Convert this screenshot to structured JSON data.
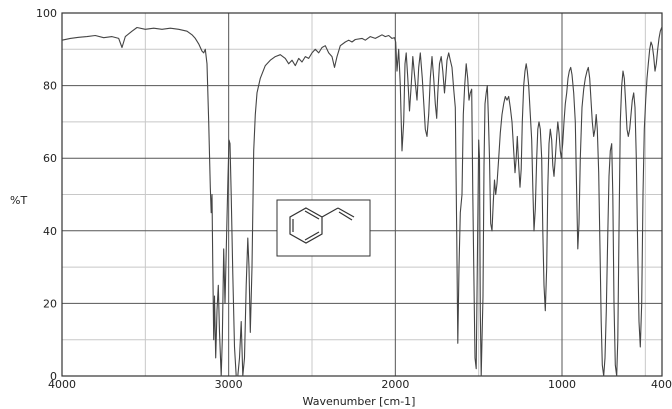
{
  "chart_data": {
    "type": "line",
    "xlabel": "Wavenumber [cm-1]",
    "ylabel": "%T",
    "xlim": [
      4000,
      400
    ],
    "ylim": [
      0,
      100
    ],
    "x_reversed": true,
    "grid": true,
    "x_ticks": [
      4000,
      3000,
      2000,
      1000,
      400
    ],
    "x_tick_labels": [
      "4000",
      "3000",
      "2000",
      "1000",
      "400"
    ],
    "x_minor_grid": [
      3500,
      2500,
      1500,
      500
    ],
    "y_ticks": [
      0,
      20,
      40,
      60,
      80,
      100
    ],
    "y_tick_labels": [
      "0",
      "20",
      "40",
      "60",
      "80",
      "100"
    ],
    "y_minor_grid": [
      10,
      30,
      50,
      70,
      90
    ],
    "inset": "styrene-structure",
    "colors": {
      "line": "#444444",
      "grid": "#555555",
      "minor_grid": "#c8c8c8",
      "frame": "#333333"
    },
    "series": [
      {
        "points": [
          [
            4000,
            92.5
          ],
          [
            3950,
            93
          ],
          [
            3900,
            93.3
          ],
          [
            3850,
            93.5
          ],
          [
            3800,
            93.8
          ],
          [
            3750,
            93.2
          ],
          [
            3700,
            93.5
          ],
          [
            3660,
            93
          ],
          [
            3640,
            90.5
          ],
          [
            3620,
            93.5
          ],
          [
            3580,
            95
          ],
          [
            3550,
            96
          ],
          [
            3500,
            95.5
          ],
          [
            3450,
            95.8
          ],
          [
            3400,
            95.5
          ],
          [
            3350,
            95.8
          ],
          [
            3300,
            95.5
          ],
          [
            3250,
            95
          ],
          [
            3220,
            94
          ],
          [
            3200,
            93
          ],
          [
            3180,
            91.5
          ],
          [
            3160,
            89.5
          ],
          [
            3150,
            89
          ],
          [
            3140,
            90
          ],
          [
            3130,
            86
          ],
          [
            3120,
            70
          ],
          [
            3110,
            52
          ],
          [
            3105,
            45
          ],
          [
            3100,
            50
          ],
          [
            3095,
            30
          ],
          [
            3090,
            10
          ],
          [
            3085,
            22
          ],
          [
            3078,
            5
          ],
          [
            3070,
            18
          ],
          [
            3062,
            25
          ],
          [
            3055,
            12
          ],
          [
            3045,
            0
          ],
          [
            3038,
            10
          ],
          [
            3030,
            35
          ],
          [
            3022,
            20
          ],
          [
            3012,
            40
          ],
          [
            3004,
            55
          ],
          [
            2998,
            65
          ],
          [
            2992,
            64
          ],
          [
            2985,
            50
          ],
          [
            2975,
            28
          ],
          [
            2965,
            8
          ],
          [
            2955,
            0
          ],
          [
            2945,
            0
          ],
          [
            2935,
            5
          ],
          [
            2925,
            15
          ],
          [
            2915,
            0
          ],
          [
            2905,
            5
          ],
          [
            2895,
            25
          ],
          [
            2885,
            38
          ],
          [
            2878,
            30
          ],
          [
            2870,
            12
          ],
          [
            2860,
            30
          ],
          [
            2850,
            62
          ],
          [
            2840,
            72
          ],
          [
            2830,
            78
          ],
          [
            2810,
            82
          ],
          [
            2780,
            85.5
          ],
          [
            2750,
            87
          ],
          [
            2720,
            88
          ],
          [
            2690,
            88.5
          ],
          [
            2660,
            87.5
          ],
          [
            2640,
            86
          ],
          [
            2620,
            87
          ],
          [
            2600,
            85.5
          ],
          [
            2580,
            87.5
          ],
          [
            2560,
            86.5
          ],
          [
            2540,
            88
          ],
          [
            2520,
            87.5
          ],
          [
            2500,
            89
          ],
          [
            2480,
            90
          ],
          [
            2460,
            89
          ],
          [
            2440,
            90.5
          ],
          [
            2420,
            91
          ],
          [
            2400,
            89
          ],
          [
            2380,
            88
          ],
          [
            2365,
            85
          ],
          [
            2350,
            88
          ],
          [
            2330,
            91
          ],
          [
            2300,
            92
          ],
          [
            2280,
            92.5
          ],
          [
            2260,
            92
          ],
          [
            2240,
            92.7
          ],
          [
            2200,
            93
          ],
          [
            2180,
            92.5
          ],
          [
            2150,
            93.5
          ],
          [
            2120,
            93
          ],
          [
            2100,
            93.5
          ],
          [
            2080,
            94
          ],
          [
            2060,
            93.5
          ],
          [
            2040,
            93.8
          ],
          [
            2020,
            93
          ],
          [
            2005,
            93.2
          ],
          [
            1998,
            92
          ],
          [
            1990,
            84
          ],
          [
            1980,
            90
          ],
          [
            1970,
            80
          ],
          [
            1960,
            62
          ],
          [
            1950,
            70
          ],
          [
            1942,
            86
          ],
          [
            1935,
            89
          ],
          [
            1925,
            82
          ],
          [
            1915,
            73
          ],
          [
            1905,
            80
          ],
          [
            1895,
            88
          ],
          [
            1885,
            83
          ],
          [
            1870,
            76
          ],
          [
            1860,
            85
          ],
          [
            1850,
            89
          ],
          [
            1838,
            82
          ],
          [
            1820,
            68
          ],
          [
            1810,
            66
          ],
          [
            1800,
            72
          ],
          [
            1790,
            82
          ],
          [
            1780,
            88
          ],
          [
            1770,
            82
          ],
          [
            1760,
            75
          ],
          [
            1752,
            71
          ],
          [
            1745,
            78
          ],
          [
            1735,
            86
          ],
          [
            1725,
            88
          ],
          [
            1715,
            84
          ],
          [
            1705,
            78
          ],
          [
            1698,
            82
          ],
          [
            1690,
            87
          ],
          [
            1680,
            89
          ],
          [
            1670,
            87
          ],
          [
            1660,
            85
          ],
          [
            1650,
            79
          ],
          [
            1640,
            74
          ],
          [
            1632,
            40
          ],
          [
            1625,
            9
          ],
          [
            1618,
            30
          ],
          [
            1610,
            45
          ],
          [
            1600,
            50
          ],
          [
            1592,
            72
          ],
          [
            1584,
            80
          ],
          [
            1575,
            86
          ],
          [
            1566,
            82
          ],
          [
            1558,
            76
          ],
          [
            1550,
            78
          ],
          [
            1542,
            79
          ],
          [
            1535,
            50
          ],
          [
            1528,
            25
          ],
          [
            1522,
            5
          ],
          [
            1515,
            2
          ],
          [
            1508,
            30
          ],
          [
            1500,
            65
          ],
          [
            1495,
            60
          ],
          [
            1490,
            18
          ],
          [
            1485,
            0
          ],
          [
            1480,
            10
          ],
          [
            1474,
            22
          ],
          [
            1468,
            58
          ],
          [
            1462,
            75
          ],
          [
            1455,
            78
          ],
          [
            1448,
            80
          ],
          [
            1442,
            72
          ],
          [
            1435,
            60
          ],
          [
            1428,
            42
          ],
          [
            1420,
            40
          ],
          [
            1412,
            48
          ],
          [
            1405,
            54
          ],
          [
            1398,
            50
          ],
          [
            1390,
            53
          ],
          [
            1380,
            60
          ],
          [
            1370,
            67
          ],
          [
            1360,
            72
          ],
          [
            1350,
            75
          ],
          [
            1340,
            77
          ],
          [
            1330,
            76
          ],
          [
            1320,
            77
          ],
          [
            1310,
            74
          ],
          [
            1300,
            70
          ],
          [
            1290,
            62
          ],
          [
            1282,
            56
          ],
          [
            1275,
            60
          ],
          [
            1268,
            66
          ],
          [
            1260,
            58
          ],
          [
            1252,
            52
          ],
          [
            1245,
            57
          ],
          [
            1238,
            70
          ],
          [
            1230,
            80
          ],
          [
            1222,
            84
          ],
          [
            1215,
            86
          ],
          [
            1208,
            84
          ],
          [
            1200,
            80
          ],
          [
            1190,
            72
          ],
          [
            1182,
            65
          ],
          [
            1175,
            52
          ],
          [
            1168,
            40
          ],
          [
            1160,
            46
          ],
          [
            1152,
            60
          ],
          [
            1145,
            68
          ],
          [
            1138,
            70
          ],
          [
            1130,
            68
          ],
          [
            1122,
            60
          ],
          [
            1115,
            40
          ],
          [
            1108,
            25
          ],
          [
            1100,
            18
          ],
          [
            1092,
            30
          ],
          [
            1085,
            52
          ],
          [
            1078,
            64
          ],
          [
            1070,
            68
          ],
          [
            1062,
            65
          ],
          [
            1055,
            58
          ],
          [
            1048,
            55
          ],
          [
            1040,
            60
          ],
          [
            1032,
            66
          ],
          [
            1025,
            70
          ],
          [
            1018,
            67
          ],
          [
            1010,
            62
          ],
          [
            1004,
            60
          ],
          [
            996,
            64
          ],
          [
            988,
            70
          ],
          [
            980,
            75
          ],
          [
            972,
            78
          ],
          [
            964,
            82
          ],
          [
            956,
            84
          ],
          [
            948,
            85
          ],
          [
            940,
            83
          ],
          [
            930,
            78
          ],
          [
            920,
            70
          ],
          [
            912,
            50
          ],
          [
            905,
            35
          ],
          [
            898,
            42
          ],
          [
            890,
            60
          ],
          [
            880,
            74
          ],
          [
            870,
            79
          ],
          [
            860,
            82
          ],
          [
            850,
            84
          ],
          [
            842,
            85
          ],
          [
            834,
            82
          ],
          [
            826,
            76
          ],
          [
            818,
            70
          ],
          [
            810,
            66
          ],
          [
            802,
            68
          ],
          [
            795,
            72
          ],
          [
            788,
            68
          ],
          [
            780,
            56
          ],
          [
            772,
            35
          ],
          [
            765,
            15
          ],
          [
            758,
            3
          ],
          [
            750,
            0
          ],
          [
            742,
            5
          ],
          [
            734,
            18
          ],
          [
            726,
            38
          ],
          [
            718,
            55
          ],
          [
            710,
            62
          ],
          [
            702,
            64
          ],
          [
            695,
            50
          ],
          [
            688,
            20
          ],
          [
            680,
            3
          ],
          [
            672,
            0
          ],
          [
            665,
            10
          ],
          [
            658,
            40
          ],
          [
            650,
            70
          ],
          [
            642,
            80
          ],
          [
            634,
            84
          ],
          [
            626,
            82
          ],
          [
            618,
            75
          ],
          [
            610,
            68
          ],
          [
            602,
            66
          ],
          [
            594,
            68
          ],
          [
            586,
            72
          ],
          [
            578,
            76
          ],
          [
            570,
            78
          ],
          [
            562,
            74
          ],
          [
            554,
            60
          ],
          [
            546,
            35
          ],
          [
            538,
            15
          ],
          [
            530,
            8
          ],
          [
            522,
            20
          ],
          [
            514,
            50
          ],
          [
            506,
            68
          ],
          [
            498,
            76
          ],
          [
            490,
            82
          ],
          [
            482,
            86
          ],
          [
            474,
            90
          ],
          [
            466,
            92
          ],
          [
            458,
            91
          ],
          [
            450,
            88
          ],
          [
            442,
            84
          ],
          [
            434,
            86
          ],
          [
            426,
            90
          ],
          [
            418,
            93
          ],
          [
            410,
            95
          ],
          [
            402,
            96
          ]
        ]
      }
    ]
  }
}
